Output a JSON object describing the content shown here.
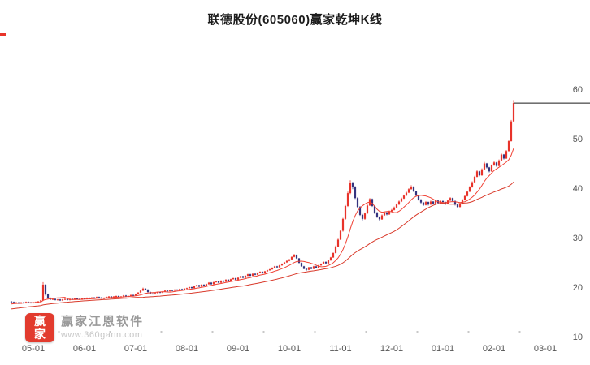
{
  "window": {
    "title": "联德股份(605060)赢家乾坤K线"
  },
  "colors": {
    "up_candle": "#e8332a",
    "down_candle": "#34347e",
    "axis_text": "#555555",
    "last_price_line": "#1a1a1a",
    "minor_tick": "#c8c8c8",
    "left_marker": "#e8332a",
    "logo_bg": "#e23b2e",
    "watermark_brand": "#9a9a9a",
    "watermark_url": "#c6c6c6"
  },
  "watermark": {
    "logo_text": "赢家",
    "brand": "赢家江恩软件",
    "url": "www.360gann.com"
  },
  "chart_data": {
    "type": "candlestick",
    "title": "联德股份(605060)赢家乾坤K线",
    "stock_name": "联德股份",
    "symbol": "605060",
    "grid": false,
    "legend": false,
    "ylim": [
      10,
      62
    ],
    "y_ticks": [
      60,
      50,
      40,
      30,
      20,
      10
    ],
    "x_ticks": [
      {
        "label": "05-01",
        "index": 9
      },
      {
        "label": "06-01",
        "index": 30
      },
      {
        "label": "07-01",
        "index": 51
      },
      {
        "label": "08-01",
        "index": 72
      },
      {
        "label": "09-01",
        "index": 93
      },
      {
        "label": "10-01",
        "index": 114
      },
      {
        "label": "11-01",
        "index": 135
      },
      {
        "label": "12-01",
        "index": 156
      },
      {
        "label": "01-01",
        "index": 177
      },
      {
        "label": "02-01",
        "index": 198
      },
      {
        "label": "03-01",
        "index": 219
      }
    ],
    "last_price": 57.2,
    "moving_averages": [
      {
        "name": "MA10",
        "window": 10,
        "color": "#f04134"
      },
      {
        "name": "MA40",
        "window": 40,
        "color": "#d93a2b"
      }
    ],
    "ma_warmup_closes": [
      14.2,
      14.3,
      14.3,
      14.4,
      14.5,
      14.5,
      14.6,
      14.7,
      14.7,
      14.8,
      14.9,
      15.0,
      15.0,
      15.1,
      15.2,
      15.2,
      15.3,
      15.4,
      15.4,
      15.5,
      15.6,
      15.6,
      15.7,
      15.8,
      15.8,
      15.9,
      16.0,
      16.0,
      16.1,
      16.2,
      16.2,
      16.3,
      16.4,
      16.4,
      16.5,
      16.6,
      16.6,
      16.7,
      16.7,
      16.8
    ],
    "candles": [
      [
        17.1,
        17.2,
        16.9,
        17.0
      ],
      [
        17.0,
        17.1,
        16.7,
        16.8
      ],
      [
        16.8,
        17.0,
        16.7,
        16.9
      ],
      [
        16.9,
        17.0,
        16.6,
        16.7
      ],
      [
        16.7,
        17.0,
        16.6,
        16.9
      ],
      [
        16.9,
        17.0,
        16.7,
        16.8
      ],
      [
        16.8,
        17.1,
        16.7,
        17.0
      ],
      [
        17.0,
        17.1,
        16.8,
        16.9
      ],
      [
        16.9,
        17.0,
        16.7,
        16.8
      ],
      [
        16.8,
        17.0,
        16.7,
        16.9
      ],
      [
        16.9,
        17.1,
        16.8,
        17.0
      ],
      [
        17.0,
        17.2,
        16.9,
        17.1
      ],
      [
        17.1,
        17.4,
        17.0,
        17.3
      ],
      [
        17.3,
        21.0,
        17.2,
        20.5
      ],
      [
        20.5,
        20.6,
        18.3,
        18.6
      ],
      [
        18.6,
        18.7,
        17.6,
        17.8
      ],
      [
        17.8,
        17.9,
        17.4,
        17.5
      ],
      [
        17.5,
        17.7,
        17.4,
        17.6
      ],
      [
        17.6,
        17.7,
        17.3,
        17.4
      ],
      [
        17.4,
        17.6,
        17.3,
        17.5
      ],
      [
        17.5,
        17.6,
        17.2,
        17.3
      ],
      [
        17.3,
        17.6,
        17.2,
        17.5
      ],
      [
        17.5,
        17.7,
        17.4,
        17.6
      ],
      [
        17.6,
        17.7,
        17.3,
        17.4
      ],
      [
        17.4,
        17.7,
        17.3,
        17.6
      ],
      [
        17.6,
        17.7,
        17.4,
        17.5
      ],
      [
        17.5,
        17.8,
        17.4,
        17.7
      ],
      [
        17.7,
        17.8,
        17.5,
        17.6
      ],
      [
        17.6,
        17.7,
        17.4,
        17.5
      ],
      [
        17.5,
        17.8,
        17.4,
        17.7
      ],
      [
        17.7,
        17.8,
        17.5,
        17.6
      ],
      [
        17.6,
        17.9,
        17.5,
        17.8
      ],
      [
        17.8,
        17.9,
        17.6,
        17.7
      ],
      [
        17.7,
        18.0,
        17.6,
        17.9
      ],
      [
        17.9,
        18.0,
        17.7,
        17.8
      ],
      [
        17.8,
        18.1,
        17.7,
        18.0
      ],
      [
        18.0,
        18.1,
        17.8,
        17.9
      ],
      [
        17.9,
        18.0,
        17.6,
        17.7
      ],
      [
        17.7,
        17.9,
        17.6,
        17.8
      ],
      [
        17.8,
        18.1,
        17.7,
        18.0
      ],
      [
        18.0,
        18.2,
        17.9,
        18.1
      ],
      [
        18.1,
        18.2,
        17.8,
        17.9
      ],
      [
        17.9,
        18.2,
        17.8,
        18.1
      ],
      [
        18.1,
        18.3,
        18.0,
        18.2
      ],
      [
        18.2,
        18.3,
        17.9,
        18.0
      ],
      [
        18.0,
        18.2,
        17.9,
        18.1
      ],
      [
        18.1,
        18.4,
        18.0,
        18.3
      ],
      [
        18.3,
        18.4,
        18.0,
        18.1
      ],
      [
        18.1,
        18.3,
        18.0,
        18.2
      ],
      [
        18.2,
        18.5,
        18.1,
        18.4
      ],
      [
        18.4,
        18.5,
        18.2,
        18.3
      ],
      [
        18.3,
        18.7,
        18.2,
        18.6
      ],
      [
        18.6,
        19.0,
        18.5,
        18.9
      ],
      [
        18.9,
        19.4,
        18.8,
        19.3
      ],
      [
        19.3,
        19.9,
        19.2,
        19.7
      ],
      [
        19.7,
        19.8,
        19.4,
        19.5
      ],
      [
        19.5,
        19.6,
        18.9,
        19.0
      ],
      [
        19.0,
        19.1,
        18.6,
        18.7
      ],
      [
        18.7,
        18.8,
        18.5,
        18.6
      ],
      [
        18.6,
        18.9,
        18.5,
        18.8
      ],
      [
        18.8,
        19.1,
        18.7,
        19.0
      ],
      [
        19.0,
        19.1,
        18.8,
        18.9
      ],
      [
        18.9,
        19.2,
        18.8,
        19.1
      ],
      [
        19.1,
        19.4,
        19.0,
        19.3
      ],
      [
        19.3,
        19.4,
        19.1,
        19.2
      ],
      [
        19.2,
        19.5,
        19.1,
        19.4
      ],
      [
        19.4,
        19.5,
        19.2,
        19.3
      ],
      [
        19.3,
        19.6,
        19.2,
        19.5
      ],
      [
        19.5,
        19.6,
        19.3,
        19.4
      ],
      [
        19.4,
        19.7,
        19.3,
        19.6
      ],
      [
        19.6,
        19.7,
        19.4,
        19.5
      ],
      [
        19.5,
        19.8,
        19.4,
        19.7
      ],
      [
        19.7,
        19.9,
        19.6,
        19.8
      ],
      [
        19.8,
        20.1,
        19.7,
        20.0
      ],
      [
        20.0,
        20.1,
        19.7,
        19.8
      ],
      [
        19.8,
        20.3,
        19.7,
        20.2
      ],
      [
        20.2,
        20.5,
        20.1,
        20.4
      ],
      [
        20.4,
        20.5,
        20.0,
        20.1
      ],
      [
        20.1,
        20.6,
        20.0,
        20.5
      ],
      [
        20.5,
        20.6,
        20.2,
        20.3
      ],
      [
        20.3,
        20.7,
        20.2,
        20.6
      ],
      [
        20.6,
        21.0,
        20.5,
        20.9
      ],
      [
        20.9,
        21.0,
        20.5,
        20.6
      ],
      [
        20.6,
        21.1,
        20.5,
        21.0
      ],
      [
        21.0,
        21.3,
        20.9,
        21.2
      ],
      [
        21.2,
        21.3,
        20.8,
        20.9
      ],
      [
        20.9,
        21.4,
        20.8,
        21.3
      ],
      [
        21.3,
        21.4,
        21.0,
        21.1
      ],
      [
        21.1,
        21.6,
        21.0,
        21.5
      ],
      [
        21.5,
        21.6,
        21.1,
        21.2
      ],
      [
        21.2,
        21.7,
        21.1,
        21.6
      ],
      [
        21.6,
        21.9,
        21.5,
        21.8
      ],
      [
        21.8,
        21.9,
        21.4,
        21.5
      ],
      [
        21.5,
        22.0,
        21.4,
        21.9
      ],
      [
        21.9,
        22.3,
        21.8,
        22.2
      ],
      [
        22.2,
        22.3,
        21.8,
        21.9
      ],
      [
        21.9,
        22.4,
        21.8,
        22.3
      ],
      [
        22.3,
        22.7,
        22.2,
        22.6
      ],
      [
        22.6,
        22.7,
        22.2,
        22.3
      ],
      [
        22.3,
        22.8,
        22.2,
        22.7
      ],
      [
        22.7,
        22.8,
        22.4,
        22.5
      ],
      [
        22.5,
        23.0,
        22.4,
        22.9
      ],
      [
        22.9,
        23.2,
        22.8,
        23.1
      ],
      [
        23.1,
        23.2,
        22.7,
        22.8
      ],
      [
        22.8,
        23.3,
        22.7,
        23.2
      ],
      [
        23.2,
        23.5,
        23.1,
        23.4
      ],
      [
        23.4,
        23.7,
        23.3,
        23.6
      ],
      [
        23.6,
        24.0,
        23.5,
        23.9
      ],
      [
        23.9,
        24.3,
        23.8,
        24.2
      ],
      [
        24.2,
        24.3,
        23.9,
        24.0
      ],
      [
        24.0,
        24.5,
        23.9,
        24.4
      ],
      [
        24.4,
        24.8,
        24.3,
        24.7
      ],
      [
        24.7,
        25.1,
        24.6,
        25.0
      ],
      [
        25.0,
        25.4,
        24.9,
        25.3
      ],
      [
        25.3,
        25.7,
        25.2,
        25.6
      ],
      [
        25.6,
        26.2,
        25.5,
        26.1
      ],
      [
        26.1,
        26.7,
        26.0,
        26.5
      ],
      [
        26.5,
        26.6,
        25.7,
        25.8
      ],
      [
        25.8,
        25.9,
        24.8,
        24.9
      ],
      [
        24.9,
        25.0,
        24.1,
        24.2
      ],
      [
        24.2,
        24.3,
        23.6,
        23.7
      ],
      [
        23.7,
        23.8,
        23.3,
        23.5
      ],
      [
        23.5,
        24.1,
        23.4,
        24.0
      ],
      [
        24.0,
        24.1,
        23.6,
        23.7
      ],
      [
        23.7,
        24.3,
        23.6,
        24.2
      ],
      [
        24.2,
        24.3,
        23.8,
        23.9
      ],
      [
        23.9,
        24.5,
        23.8,
        24.4
      ],
      [
        24.4,
        24.8,
        24.3,
        24.7
      ],
      [
        24.7,
        25.2,
        24.6,
        25.1
      ],
      [
        25.1,
        25.2,
        24.7,
        24.8
      ],
      [
        24.8,
        25.5,
        24.7,
        25.4
      ],
      [
        25.4,
        26.1,
        25.3,
        26.0
      ],
      [
        26.0,
        27.0,
        25.9,
        26.9
      ],
      [
        26.9,
        28.4,
        26.8,
        28.2
      ],
      [
        28.2,
        29.8,
        28.1,
        29.6
      ],
      [
        29.6,
        31.6,
        29.5,
        31.4
      ],
      [
        31.4,
        34.0,
        31.2,
        33.8
      ],
      [
        33.8,
        36.6,
        33.6,
        36.4
      ],
      [
        36.4,
        39.3,
        36.2,
        39.0
      ],
      [
        39.0,
        41.6,
        38.8,
        41.0
      ],
      [
        41.0,
        41.3,
        39.8,
        40.2
      ],
      [
        40.2,
        40.4,
        37.8,
        38.0
      ],
      [
        38.0,
        38.2,
        36.0,
        36.2
      ],
      [
        36.2,
        36.4,
        34.4,
        34.6
      ],
      [
        34.6,
        34.8,
        33.5,
        33.8
      ],
      [
        33.8,
        35.1,
        33.6,
        34.9
      ],
      [
        34.9,
        36.7,
        34.8,
        36.5
      ],
      [
        36.5,
        38.0,
        36.4,
        37.8
      ],
      [
        37.8,
        37.9,
        36.2,
        36.4
      ],
      [
        36.4,
        36.5,
        34.8,
        35.0
      ],
      [
        35.0,
        35.2,
        34.0,
        34.2
      ],
      [
        34.2,
        34.3,
        33.4,
        33.7
      ],
      [
        33.7,
        34.7,
        33.6,
        34.5
      ],
      [
        34.5,
        35.3,
        34.4,
        35.1
      ],
      [
        35.1,
        35.2,
        34.5,
        34.7
      ],
      [
        34.7,
        35.5,
        34.6,
        35.3
      ],
      [
        35.3,
        35.8,
        35.2,
        35.6
      ],
      [
        35.6,
        36.3,
        35.5,
        36.1
      ],
      [
        36.1,
        36.9,
        36.0,
        36.7
      ],
      [
        36.7,
        37.5,
        36.6,
        37.3
      ],
      [
        37.3,
        38.1,
        37.2,
        37.9
      ],
      [
        37.9,
        38.7,
        37.8,
        38.5
      ],
      [
        38.5,
        39.3,
        38.4,
        39.1
      ],
      [
        39.1,
        40.0,
        39.0,
        39.8
      ],
      [
        39.8,
        40.6,
        39.7,
        40.3
      ],
      [
        40.3,
        40.4,
        39.2,
        39.4
      ],
      [
        39.4,
        39.5,
        38.3,
        38.5
      ],
      [
        38.5,
        38.6,
        37.5,
        37.7
      ],
      [
        37.7,
        37.8,
        36.9,
        37.1
      ],
      [
        37.1,
        37.2,
        36.4,
        36.6
      ],
      [
        36.6,
        37.4,
        36.5,
        37.2
      ],
      [
        37.2,
        37.3,
        36.5,
        36.7
      ],
      [
        36.7,
        37.5,
        36.6,
        37.3
      ],
      [
        37.3,
        37.4,
        36.7,
        36.9
      ],
      [
        36.9,
        37.7,
        36.8,
        37.5
      ],
      [
        37.5,
        37.6,
        36.8,
        37.0
      ],
      [
        37.0,
        37.6,
        36.9,
        37.4
      ],
      [
        37.4,
        37.5,
        37.0,
        37.2
      ],
      [
        37.2,
        37.3,
        36.6,
        36.8
      ],
      [
        36.8,
        37.7,
        36.7,
        37.5
      ],
      [
        37.5,
        38.2,
        37.4,
        38.0
      ],
      [
        38.0,
        38.1,
        37.2,
        37.4
      ],
      [
        37.4,
        37.5,
        36.5,
        36.7
      ],
      [
        36.7,
        36.8,
        36.0,
        36.2
      ],
      [
        36.2,
        37.0,
        36.1,
        36.8
      ],
      [
        36.8,
        37.8,
        36.7,
        37.6
      ],
      [
        37.6,
        38.6,
        37.5,
        38.4
      ],
      [
        38.4,
        39.5,
        38.3,
        39.3
      ],
      [
        39.3,
        40.4,
        39.2,
        40.2
      ],
      [
        40.2,
        41.4,
        40.1,
        41.2
      ],
      [
        41.2,
        42.5,
        41.1,
        42.3
      ],
      [
        42.3,
        43.6,
        42.2,
        43.4
      ],
      [
        43.4,
        43.5,
        42.4,
        42.6
      ],
      [
        42.6,
        44.0,
        42.5,
        43.8
      ],
      [
        43.8,
        45.3,
        43.7,
        45.0
      ],
      [
        45.0,
        45.1,
        44.0,
        44.2
      ],
      [
        44.2,
        44.3,
        43.2,
        43.4
      ],
      [
        43.4,
        44.8,
        43.3,
        44.6
      ],
      [
        44.6,
        45.4,
        44.5,
        45.2
      ],
      [
        45.2,
        45.3,
        44.3,
        44.5
      ],
      [
        44.5,
        45.8,
        44.4,
        45.6
      ],
      [
        45.6,
        47.0,
        45.5,
        46.8
      ],
      [
        46.8,
        46.9,
        45.8,
        46.0
      ],
      [
        46.0,
        47.7,
        45.9,
        47.5
      ],
      [
        47.5,
        49.8,
        47.4,
        49.5
      ],
      [
        49.5,
        53.8,
        49.4,
        53.5
      ],
      [
        53.5,
        57.8,
        53.4,
        57.2
      ]
    ]
  }
}
